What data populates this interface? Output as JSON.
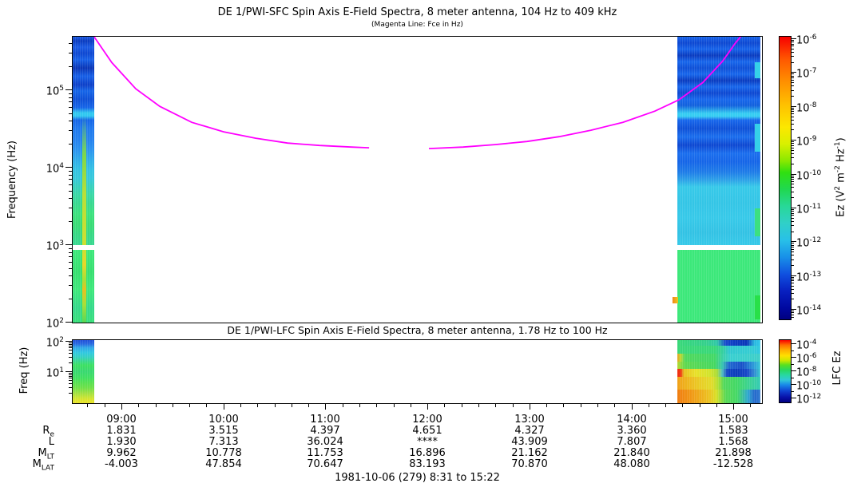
{
  "footer": "1981-10-06 (279) 8:31 to 15:22",
  "time_axis": {
    "major_tick_labels": [
      "09:00",
      "10:00",
      "11:00",
      "12:00",
      "13:00",
      "14:00",
      "15:00"
    ],
    "major_tick_hours": [
      9,
      10,
      11,
      12,
      13,
      14,
      15
    ],
    "minor_tick_minutes": 10,
    "range_hours": [
      8.517,
      15.367
    ]
  },
  "ephemeris_table": {
    "rows": [
      {
        "label_parts": [
          {
            "t": "R"
          },
          {
            "sub": "e"
          }
        ],
        "values": [
          "1.831",
          "3.515",
          "4.397",
          "4.651",
          "4.327",
          "3.360",
          "1.583"
        ]
      },
      {
        "label_parts": [
          {
            "t": "L"
          }
        ],
        "values": [
          "1.930",
          "7.313",
          "36.024",
          "****",
          "43.909",
          "7.807",
          "1.568"
        ]
      },
      {
        "label_parts": [
          {
            "t": "M"
          },
          {
            "sub": "LT"
          }
        ],
        "values": [
          "9.962",
          "10.778",
          "11.753",
          "16.896",
          "21.162",
          "21.840",
          "21.898"
        ]
      },
      {
        "label_parts": [
          {
            "t": "M"
          },
          {
            "sub": "LAT"
          }
        ],
        "values": [
          "-4.003",
          "47.854",
          "70.647",
          "83.193",
          "70.870",
          "48.080",
          "-12.528"
        ]
      }
    ]
  },
  "chart_data": [
    {
      "type": "heatmap",
      "title": "DE 1/PWI-SFC  Spin Axis E-Field Spectra, 8 meter antenna, 104 Hz to 409 kHz",
      "subtitle": "(Magenta Line: Fce in Hz)",
      "ylabel_parts": [
        {
          "t": "Frequency (Hz)"
        }
      ],
      "y_scale": "log",
      "y_range_hz": [
        100,
        480000
      ],
      "yticks_exp": [
        2,
        3,
        4,
        5
      ],
      "x_range_hours": [
        8.517,
        15.367
      ],
      "data_coverage_hours": [
        [
          8.52,
          8.73
        ],
        [
          14.45,
          15.27
        ]
      ],
      "gap_band_hz": [
        950,
        1150
      ],
      "colorbar": {
        "label_parts": [
          {
            "t": "Ez (V"
          },
          {
            "sup": "2"
          },
          {
            "t": " m"
          },
          {
            "sup": "-2"
          },
          {
            "t": " Hz"
          },
          {
            "sup": "-1"
          },
          {
            "t": ")"
          }
        ],
        "ticks_exp": [
          -6,
          -7,
          -8,
          -9,
          -10,
          -11,
          -12,
          -13,
          -14
        ]
      },
      "fce_line": {
        "color": "#ff00ff",
        "units": "Hz",
        "segments": [
          [
            [
              8.734,
              480000
            ],
            [
              8.906,
              224000
            ],
            [
              9.141,
              103000
            ],
            [
              9.376,
              61000
            ],
            [
              9.689,
              38000
            ],
            [
              10.002,
              28600
            ],
            [
              10.316,
              23700
            ],
            [
              10.629,
              20500
            ],
            [
              10.942,
              19100
            ],
            [
              11.255,
              18200
            ],
            [
              11.428,
              17800
            ]
          ],
          [
            [
              12.015,
              17400
            ],
            [
              12.351,
              18200
            ],
            [
              12.664,
              19600
            ],
            [
              12.978,
              21500
            ],
            [
              13.291,
              24800
            ],
            [
              13.604,
              30000
            ],
            [
              13.917,
              38000
            ],
            [
              14.23,
              53000
            ],
            [
              14.465,
              74000
            ],
            [
              14.7,
              124000
            ],
            [
              14.896,
              235000
            ],
            [
              15.013,
              390000
            ],
            [
              15.084,
              510000
            ]
          ]
        ]
      }
    },
    {
      "type": "heatmap",
      "title": "DE 1/PWI-LFC  Spin Axis E-Field Spectra, 8 meter antenna, 1.78 Hz to 100 Hz",
      "ylabel_parts": [
        {
          "t": "Freq (Hz)"
        }
      ],
      "y_scale": "log",
      "y_range_hz": [
        1.78,
        100
      ],
      "yticks_exp": [
        1,
        2
      ],
      "x_range_hours": [
        8.517,
        15.367
      ],
      "data_coverage_hours": [
        [
          8.52,
          8.73
        ],
        [
          14.45,
          15.27
        ]
      ],
      "colorbar": {
        "label_parts": [
          {
            "t": "LFC Ez"
          }
        ],
        "ticks_exp": [
          -4,
          -5,
          -6,
          -7,
          -8,
          -9,
          -10,
          -11,
          -12
        ],
        "labeled_ticks_exp": [
          -4,
          -6,
          -8,
          -10,
          -12
        ]
      }
    }
  ]
}
